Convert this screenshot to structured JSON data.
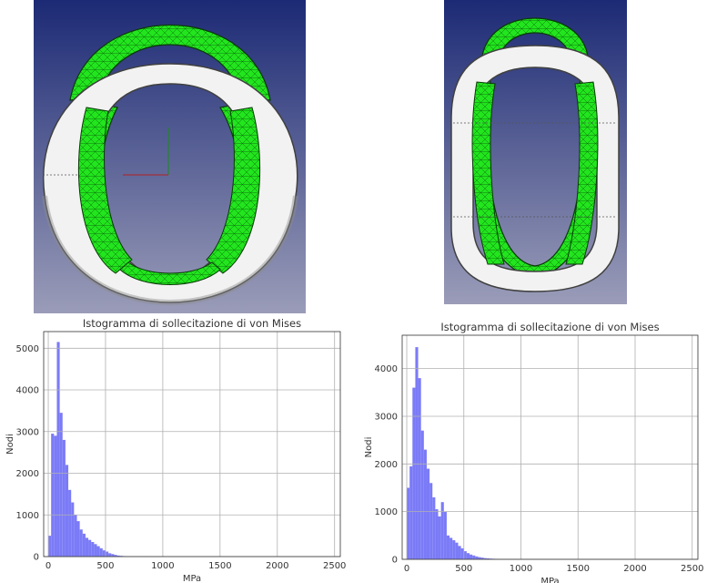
{
  "colors": {
    "viewport_top": "#1c2a75",
    "viewport_bottom": "#9a9cb8",
    "mesh_fill": "#22e51e",
    "mesh_lines": "#0d6a0a",
    "link_fill": "#f2f2f2",
    "link_shade": "#8c8c8c",
    "bar_fill": "#7b7bf7",
    "grid": "#b0b0b0"
  },
  "renders": [
    {
      "description": "chain link mesh view",
      "axes_icon": "xy-axes-icon"
    },
    {
      "description": "chain link mesh view elongated"
    }
  ],
  "chart_data": [
    {
      "type": "bar",
      "title": "Istogramma di sollecitazione di von Mises",
      "xlabel": "MPa",
      "ylabel": "Nodi",
      "xlim": [
        -40,
        2550
      ],
      "ylim": [
        0,
        5400
      ],
      "xticks": [
        "0",
        "500",
        "1000",
        "1500",
        "2000",
        "2500"
      ],
      "yticks": [
        "0",
        "1000",
        "2000",
        "3000",
        "4000",
        "5000"
      ],
      "grid": true,
      "bin_width": 25,
      "bin_starts": [
        0,
        25,
        50,
        75,
        100,
        125,
        150,
        175,
        200,
        225,
        250,
        275,
        300,
        325,
        350,
        375,
        400,
        425,
        450,
        475,
        500,
        525,
        550,
        575,
        600,
        625,
        650,
        675,
        700,
        725,
        750,
        775,
        800,
        825,
        850,
        875,
        900,
        925,
        950,
        975,
        1000,
        1025,
        1050,
        1075
      ],
      "values": [
        500,
        2950,
        2900,
        5150,
        3450,
        2800,
        2200,
        1600,
        1300,
        1000,
        850,
        650,
        550,
        450,
        400,
        350,
        300,
        250,
        200,
        150,
        120,
        80,
        60,
        40,
        25,
        18,
        12,
        8,
        6,
        5,
        4,
        3,
        3,
        2,
        2,
        2,
        1,
        1,
        1,
        1,
        1,
        1,
        1,
        1
      ]
    },
    {
      "type": "bar",
      "title": "Istogramma di sollecitazione di von Mises",
      "xlabel": "MPa",
      "ylabel": "Nodi",
      "xlim": [
        -40,
        2550
      ],
      "ylim": [
        0,
        4700
      ],
      "xticks": [
        "0",
        "500",
        "1000",
        "1500",
        "2000",
        "2500"
      ],
      "yticks": [
        "0",
        "1000",
        "2000",
        "3000",
        "4000"
      ],
      "grid": true,
      "bin_width": 25,
      "bin_starts": [
        0,
        25,
        50,
        75,
        100,
        125,
        150,
        175,
        200,
        225,
        250,
        275,
        300,
        325,
        350,
        375,
        400,
        425,
        450,
        475,
        500,
        525,
        550,
        575,
        600,
        625,
        650,
        675,
        700,
        725,
        750,
        775,
        800,
        825,
        850,
        875,
        900,
        925,
        950,
        975,
        1000,
        1025,
        1050,
        1075,
        1100,
        1125
      ],
      "values": [
        1500,
        1950,
        3600,
        4450,
        3800,
        2700,
        2300,
        1900,
        1600,
        1300,
        1050,
        900,
        1200,
        1000,
        500,
        450,
        400,
        350,
        280,
        230,
        170,
        130,
        100,
        80,
        60,
        45,
        35,
        25,
        20,
        15,
        12,
        10,
        8,
        6,
        5,
        4,
        3,
        3,
        2,
        2,
        2,
        1,
        1,
        1,
        1,
        1
      ]
    }
  ]
}
